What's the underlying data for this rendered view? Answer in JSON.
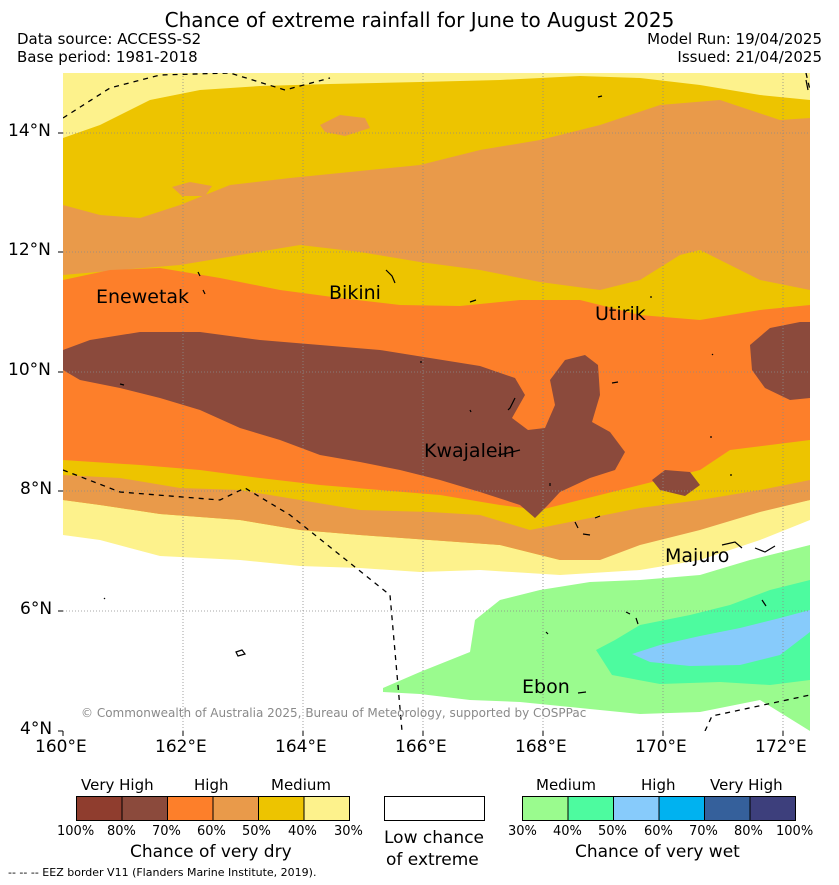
{
  "title": "Chance of extreme rainfall for June to August 2025",
  "meta": {
    "data_source": "Data source: ACCESS-S2",
    "base_period": "Base period: 1981-2018",
    "model_run": "Model Run: 19/04/2025",
    "issued": "Issued: 21/04/2025"
  },
  "axes": {
    "lat_labels": [
      "14°N",
      "12°N",
      "10°N",
      "8°N",
      "6°N",
      "4°N"
    ],
    "lon_labels": [
      "160°E",
      "162°E",
      "164°E",
      "166°E",
      "168°E",
      "170°E",
      "172°E"
    ],
    "lat_range": [
      4,
      15
    ],
    "lon_range": [
      160,
      172.5
    ]
  },
  "places": [
    "Enewetak",
    "Bikini",
    "Utirik",
    "Kwajalein",
    "Majuro",
    "Ebon"
  ],
  "copyright": "© Commonwealth of Australia 2025, Bureau of Meteorology, supported by COSPPac",
  "legend_dry": {
    "heads": [
      "Very High",
      "High",
      "Medium"
    ],
    "ticks": [
      "100%",
      "80%",
      "70%",
      "60%",
      "50%",
      "40%",
      "30%"
    ],
    "caption": "Chance of very dry",
    "colors": [
      "#8f3d2e",
      "#8b4a3c",
      "#fd7f2a",
      "#e99a4a",
      "#edc400",
      "#fdf28c"
    ]
  },
  "legend_neutral": {
    "caption_line1": "Low chance",
    "caption_line2": "of extreme",
    "color": "#ffffff"
  },
  "legend_wet": {
    "heads": [
      "Medium",
      "High",
      "Very High"
    ],
    "ticks": [
      "30%",
      "40%",
      "50%",
      "60%",
      "70%",
      "80%",
      "100%"
    ],
    "caption": "Chance of very wet",
    "colors": [
      "#9afb8e",
      "#4dfb9f",
      "#87cbfb",
      "#00b2f0",
      "#35609b",
      "#3d3f7c"
    ]
  },
  "footnote": "--  --  -- EEZ border V11 (Flanders Marine Institute, 2019)."
}
